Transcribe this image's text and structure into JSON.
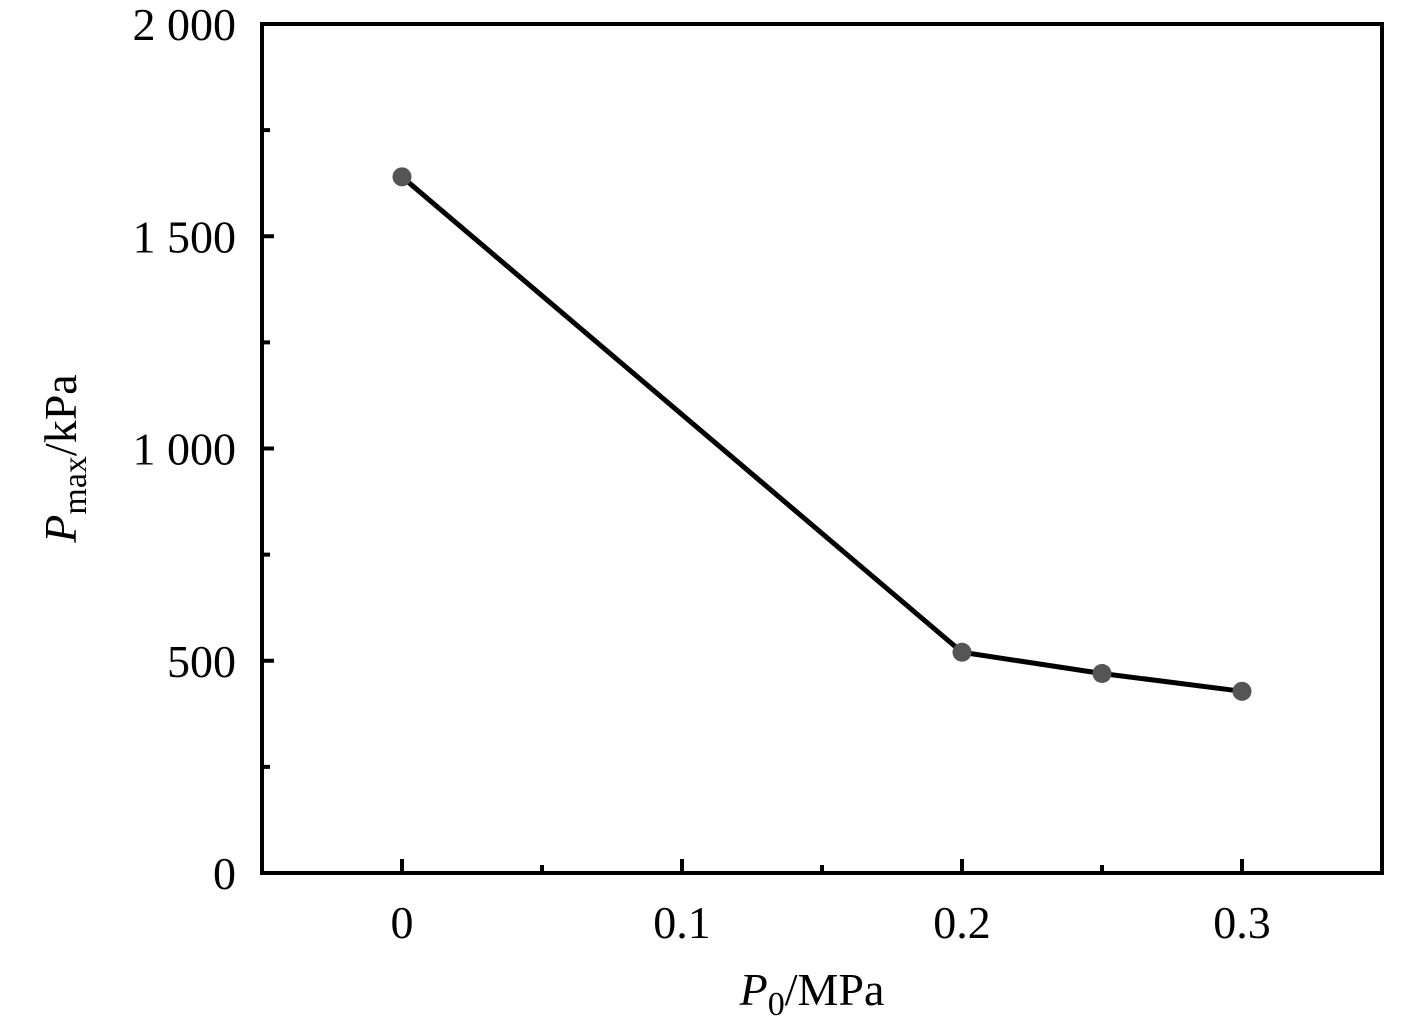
{
  "chart_data": {
    "type": "line",
    "x": [
      0,
      0.2,
      0.25,
      0.3
    ],
    "series": [
      {
        "values": [
          1640,
          520,
          470,
          428
        ]
      }
    ],
    "xlim": [
      -0.05,
      0.35
    ],
    "ylim": [
      0,
      2000
    ],
    "x_ticks": [
      0,
      0.1,
      0.2,
      0.3
    ],
    "x_tick_labels": [
      "0",
      "0.1",
      "0.2",
      "0.3"
    ],
    "x_minor_ticks": [
      0.05,
      0.15,
      0.25
    ],
    "y_ticks": [
      0,
      500,
      1000,
      1500,
      2000
    ],
    "y_tick_labels": [
      "0",
      "500",
      "1 000",
      "1 500",
      "2 000"
    ],
    "y_minor_ticks": [
      250,
      750,
      1250,
      1750
    ],
    "xlabel": {
      "main": "P",
      "sub": "0",
      "unit": "/MPa"
    },
    "ylabel": {
      "main": "P",
      "sub": "max",
      "unit": "/kPa"
    },
    "grid": false,
    "line_color": "#000000",
    "marker_color": "#555555"
  }
}
